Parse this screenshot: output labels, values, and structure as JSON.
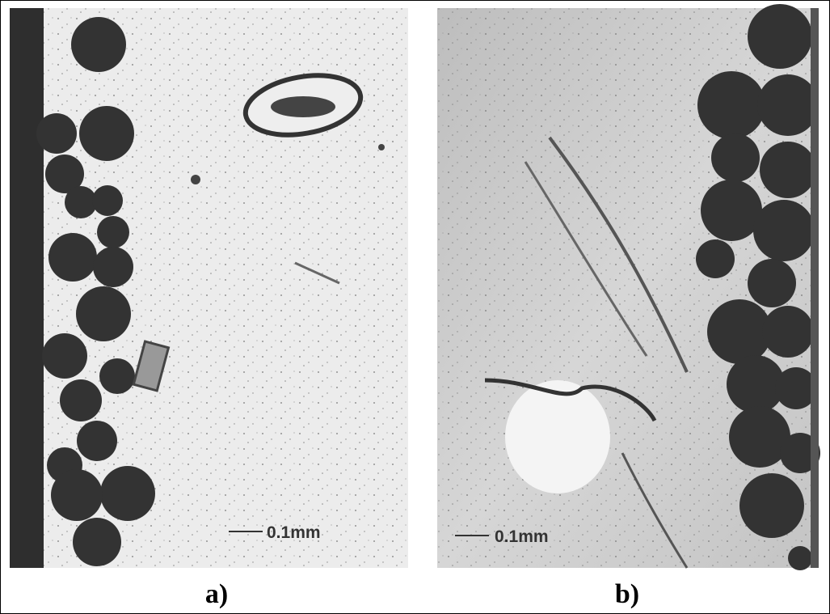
{
  "panels": [
    {
      "label": "a)",
      "scale_bar": "0.1mm"
    },
    {
      "label": "b)",
      "scale_bar": "0.1mm"
    }
  ]
}
